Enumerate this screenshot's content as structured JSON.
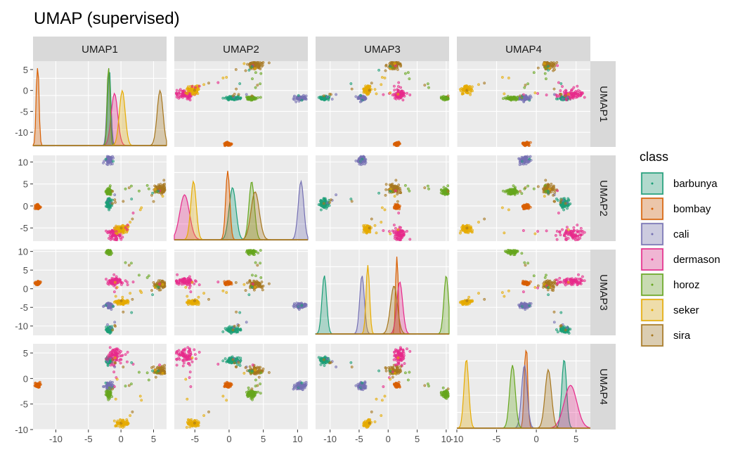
{
  "chart_data": {
    "type": "scatter",
    "title": "UMAP (supervised)",
    "variables": [
      "UMAP1",
      "UMAP2",
      "UMAP3",
      "UMAP4"
    ],
    "ranges": {
      "UMAP1": [
        -13.5,
        7.0
      ],
      "UMAP2": [
        -8.0,
        11.5
      ],
      "UMAP3": [
        -12.5,
        10.5
      ],
      "UMAP4": [
        -10.0,
        6.8
      ]
    },
    "ticks": {
      "UMAP1": [
        -10,
        -5,
        0,
        5
      ],
      "UMAP2": [
        -5,
        0,
        5,
        10
      ],
      "UMAP3": [
        -10,
        -5,
        0,
        5,
        10
      ],
      "UMAP4": [
        -10,
        -5,
        0,
        5
      ]
    },
    "legend": {
      "title": "class",
      "position": "right",
      "entries": [
        "barbunya",
        "bombay",
        "cali",
        "dermason",
        "horoz",
        "seker",
        "sira"
      ]
    },
    "colors": {
      "barbunya": "#1B9E77",
      "bombay": "#D95F02",
      "cali": "#7570B3",
      "dermason": "#E7298A",
      "horoz": "#66A61E",
      "seker": "#E6AB02",
      "sira": "#A6761D"
    },
    "clusters": [
      {
        "class": "barbunya",
        "center": [
          -1.8,
          0.5,
          -11.0,
          3.5
        ],
        "spread": [
          0.25,
          0.5,
          0.4,
          0.3
        ]
      },
      {
        "class": "bombay",
        "center": [
          -12.8,
          -0.2,
          1.5,
          -1.3
        ],
        "spread": [
          0.2,
          0.3,
          0.2,
          0.2
        ]
      },
      {
        "class": "cali",
        "center": [
          -1.9,
          10.5,
          -4.5,
          -1.5
        ],
        "spread": [
          0.25,
          0.4,
          0.4,
          0.35
        ]
      },
      {
        "class": "dermason",
        "center": [
          -1.0,
          -6.5,
          2.0,
          4.3
        ],
        "spread": [
          0.5,
          0.7,
          0.5,
          0.8
        ]
      },
      {
        "class": "horoz",
        "center": [
          -1.9,
          3.3,
          10.0,
          -3.0
        ],
        "spread": [
          0.2,
          0.4,
          0.4,
          0.35
        ]
      },
      {
        "class": "seker",
        "center": [
          0.2,
          -5.2,
          -3.5,
          -8.8
        ],
        "spread": [
          0.45,
          0.4,
          0.3,
          0.3
        ]
      },
      {
        "class": "sira",
        "center": [
          6.0,
          3.8,
          1.0,
          1.5
        ],
        "spread": [
          0.45,
          0.6,
          0.6,
          0.4
        ]
      }
    ]
  }
}
